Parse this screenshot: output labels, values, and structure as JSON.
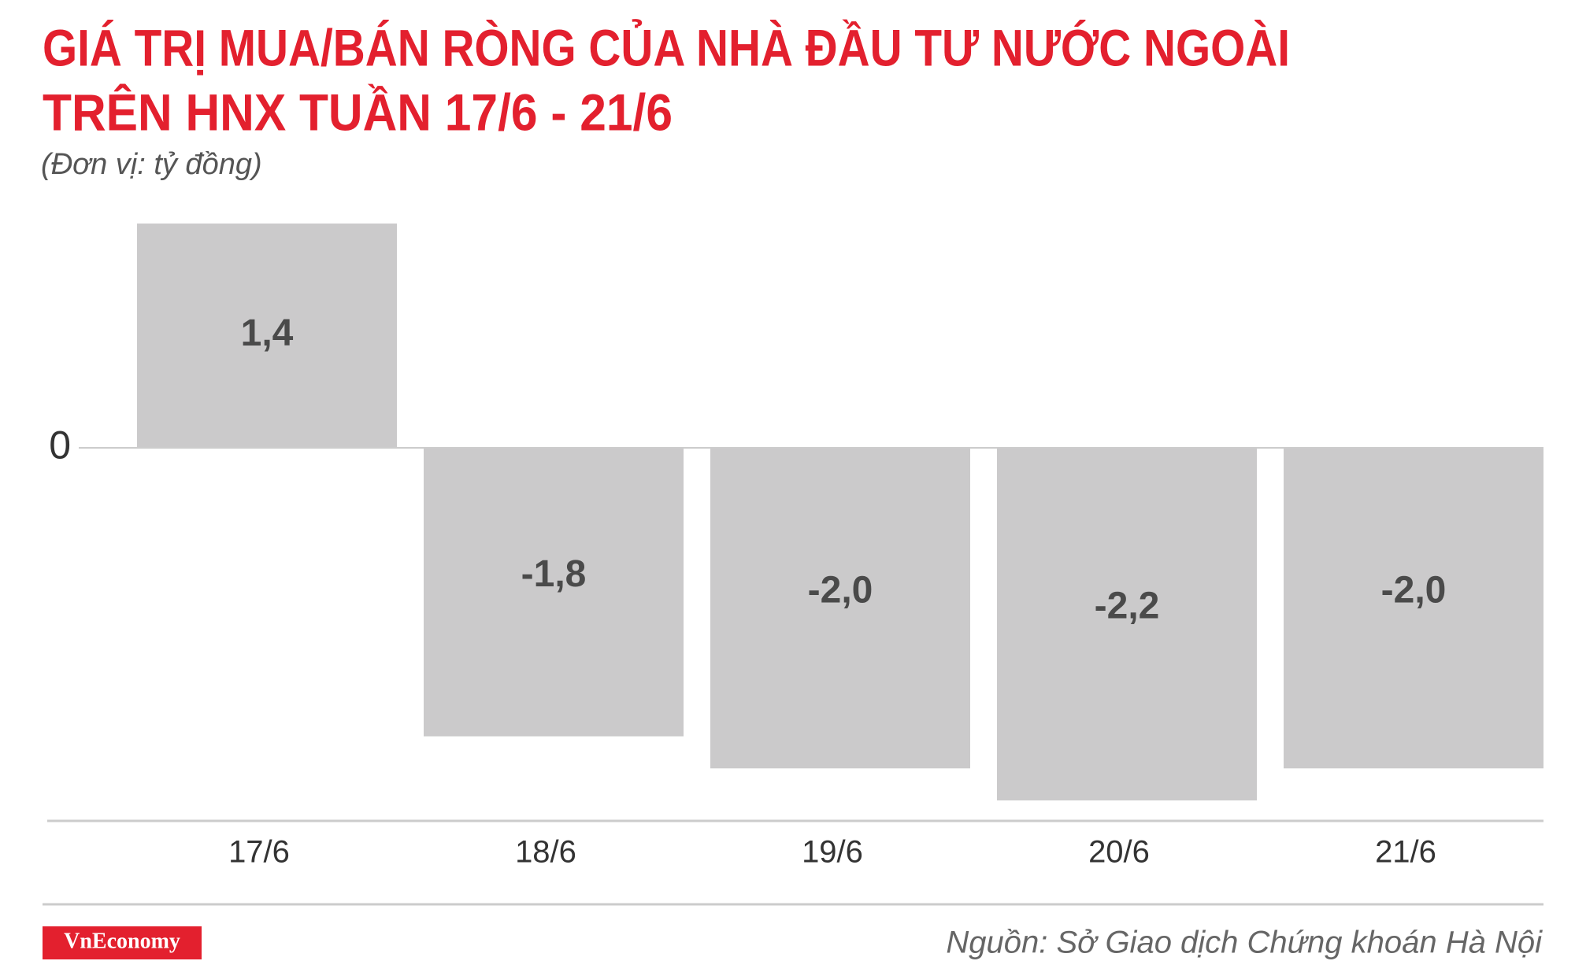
{
  "chart_data": {
    "type": "bar",
    "title": [
      "GIÁ TRỊ MUA/BÁN RÒNG CỦA NHÀ ĐẦU TƯ NƯỚC NGOÀI",
      "TRÊN HNX TUẦN 17/6 - 21/6"
    ],
    "subtitle": "(Đơn vị: tỷ đồng)",
    "categories": [
      "17/6",
      "18/6",
      "19/6",
      "20/6",
      "21/6"
    ],
    "values": [
      1.4,
      -1.8,
      -2.0,
      -2.2,
      -2.0
    ],
    "value_labels": [
      "1,4",
      "-1,8",
      "-2,0",
      "-2,2",
      "-2,0"
    ],
    "color": "#cbcacb",
    "ylim": [
      -2.2,
      1.4
    ],
    "yticks": [
      0
    ],
    "logo": "VnEconomy",
    "source": "Nguồn: Sở Giao dịch Chứng khoán Hà Nội"
  }
}
